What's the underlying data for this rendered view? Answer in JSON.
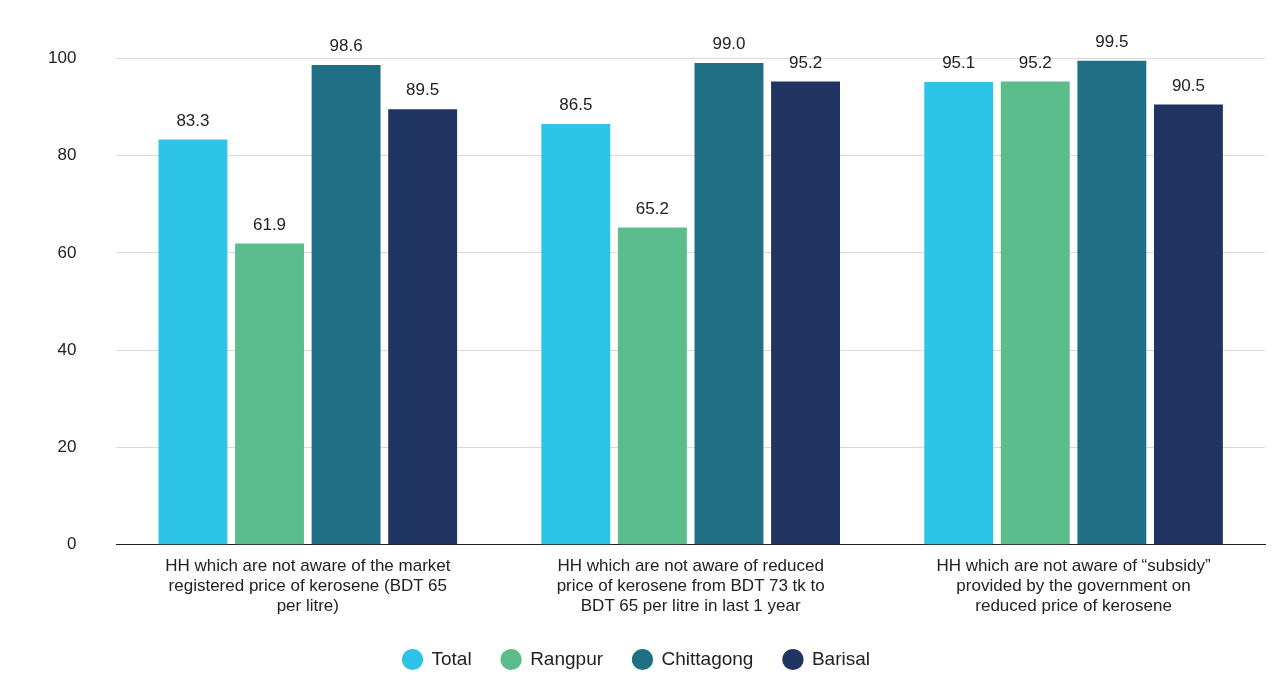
{
  "chart_data": {
    "type": "bar",
    "categories": [
      "HH which are not aware of the market registered price of kerosene (BDT 65 per litre)",
      "HH which are not aware of reduced price of kerosene from BDT 73 tk to BDT 65 per litre in last 1 year",
      "HH which are not aware of “subsidy” provided by the government on reduced price of kerosene"
    ],
    "series": [
      {
        "name": "Total",
        "color": "#2ec4ea",
        "values": [
          83.3,
          86.5,
          95.1
        ],
        "value_labels": [
          "83.3",
          "86.5",
          "95.1"
        ]
      },
      {
        "name": "Rangpur",
        "color": "#5bbd8b",
        "values": [
          61.9,
          65.2,
          95.2
        ],
        "value_labels": [
          "61.9",
          "65.2",
          "95.2"
        ]
      },
      {
        "name": "Chittagong",
        "color": "#1f6f85",
        "values": [
          98.6,
          99.0,
          99.5
        ],
        "value_labels": [
          "98.6",
          "99.0",
          "99.5"
        ]
      },
      {
        "name": "Barisal",
        "color": "#1f3461",
        "values": [
          89.5,
          95.2,
          90.5
        ],
        "value_labels": [
          "89.5",
          "95.2",
          "90.5"
        ]
      }
    ],
    "ylim": [
      0,
      100
    ],
    "yticks": [
      0,
      20,
      40,
      60,
      80,
      100
    ],
    "grid": "y",
    "legend": "bottom"
  }
}
